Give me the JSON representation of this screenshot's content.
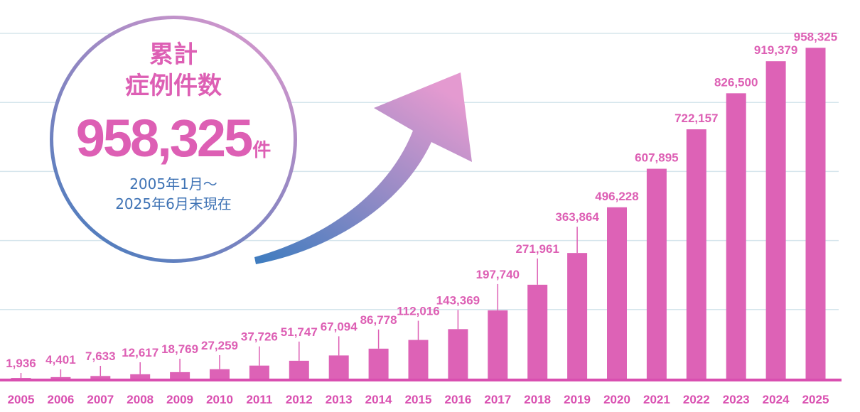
{
  "badge": {
    "title_line1": "累計",
    "title_line2": "症例件数",
    "total_value": "958,325",
    "total_unit": "件",
    "period_line1": "2005年1月～",
    "period_line2": "2025年6月末現在"
  },
  "colors": {
    "bar": "#dd62b6",
    "label": "#dd5fb4",
    "grid": "#d5e5ec",
    "axis": "#d94fb0",
    "arrow_start": "#3d7cbf",
    "arrow_end": "#e49ad0"
  },
  "chart_data": {
    "type": "bar",
    "title": "",
    "xlabel": "",
    "ylabel": "",
    "categories": [
      "2005",
      "2006",
      "2007",
      "2008",
      "2009",
      "2010",
      "2011",
      "2012",
      "2013",
      "2014",
      "2015",
      "2016",
      "2017",
      "2018",
      "2019",
      "2020",
      "2021",
      "2022",
      "2023",
      "2024",
      "2025"
    ],
    "values": [
      1936,
      4401,
      7633,
      12617,
      18769,
      27259,
      37726,
      51747,
      67094,
      86778,
      112016,
      143369,
      197740,
      271961,
      363864,
      496228,
      607895,
      722157,
      826500,
      919379,
      958325
    ],
    "value_labels": [
      "1,936",
      "4,401",
      "7,633",
      "12,617",
      "18,769",
      "27,259",
      "37,726",
      "51,747",
      "67,094",
      "86,778",
      "112,016",
      "143,369",
      "197,740",
      "271,961",
      "363,864",
      "496,228",
      "607,895",
      "722,157",
      "826,500",
      "919,379",
      "958,325"
    ],
    "ylim": [
      0,
      1000000
    ],
    "grid": true,
    "legend": "none"
  }
}
